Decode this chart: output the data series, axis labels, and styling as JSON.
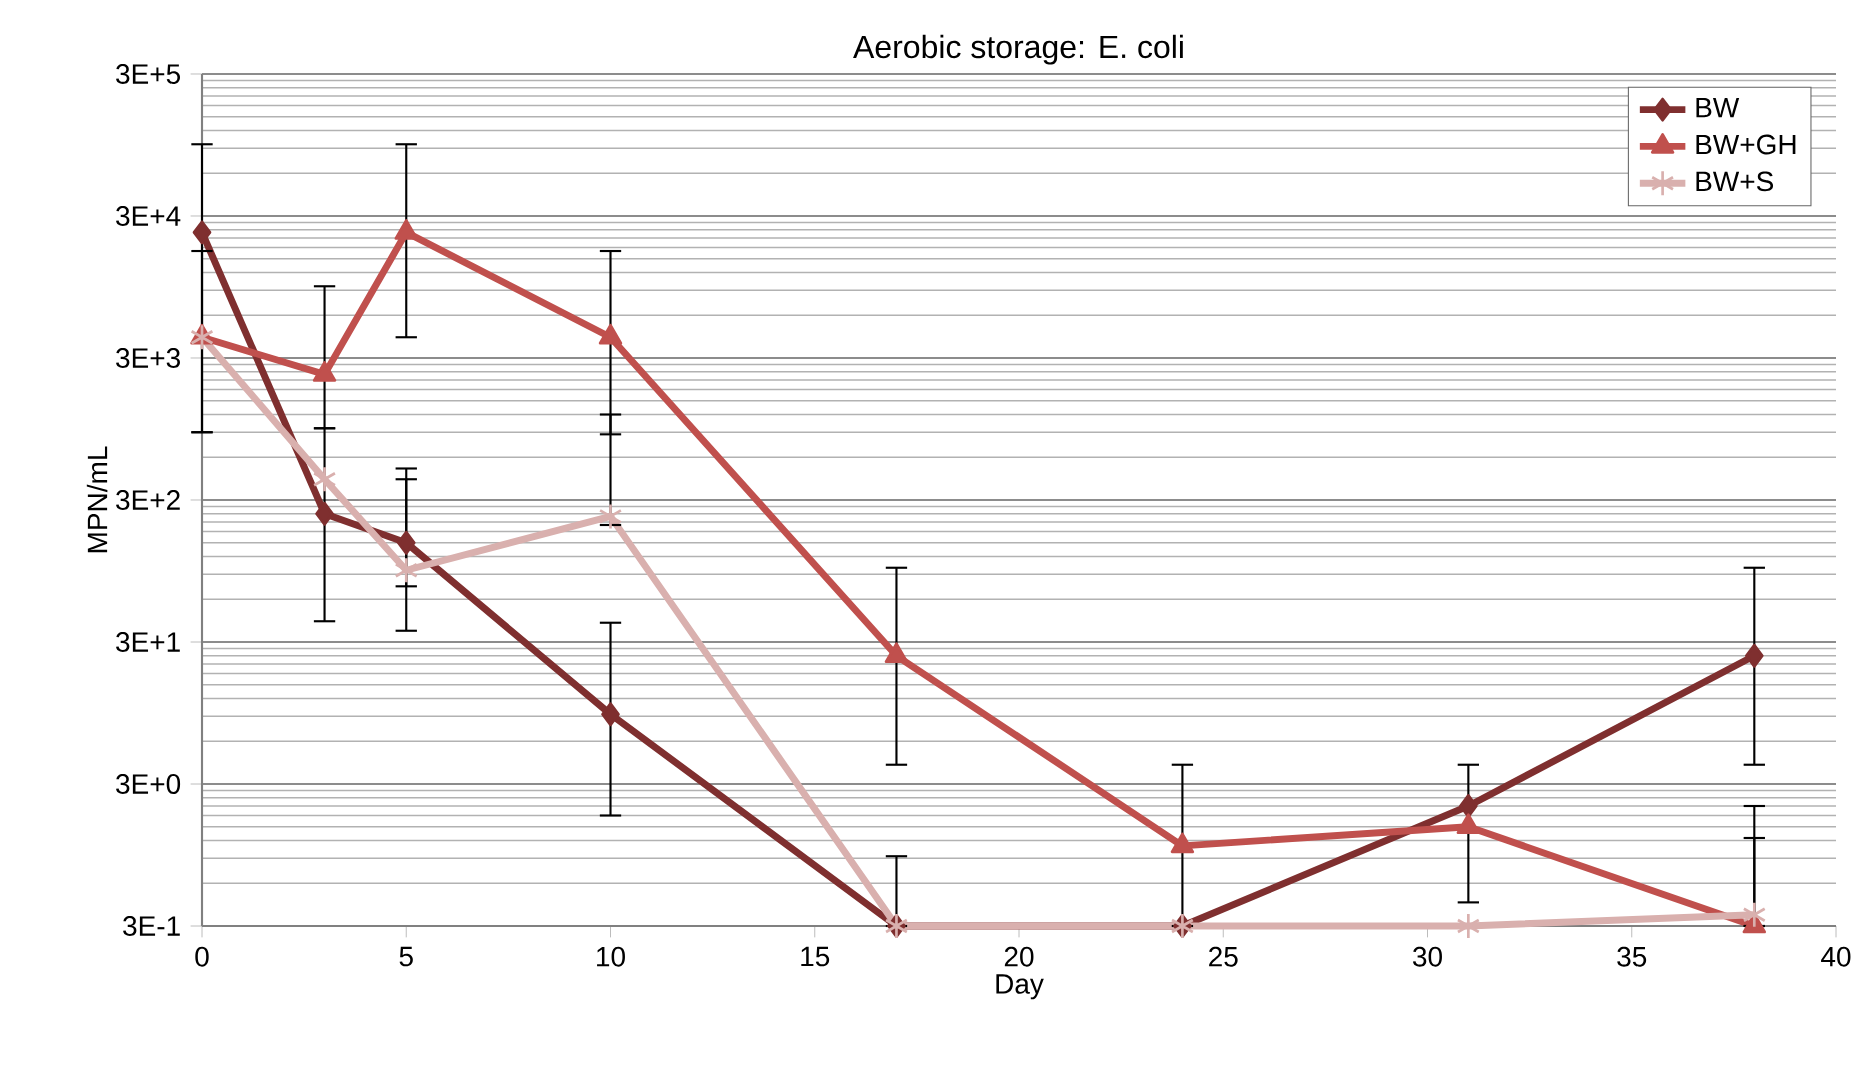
{
  "chart_data": {
    "type": "line",
    "title": "Aerobic storage: E. coli",
    "xlabel": "Day",
    "ylabel": "MPN/mL",
    "log": "y",
    "xlim": [
      0,
      40
    ],
    "xticks": [
      0,
      5,
      10,
      15,
      20,
      25,
      30,
      35,
      40
    ],
    "ylim": [
      0.3,
      300000
    ],
    "yticks": [
      {
        "value": 0.3,
        "label": "3E-1"
      },
      {
        "value": 3,
        "label": "3E+0"
      },
      {
        "value": 30,
        "label": "3E+1"
      },
      {
        "value": 300,
        "label": "3E+2"
      },
      {
        "value": 3000,
        "label": "3E+3"
      },
      {
        "value": 30000,
        "label": "3E+4"
      },
      {
        "value": 300000,
        "label": "3E+5"
      }
    ],
    "grid": "y",
    "legend": "top right",
    "line_style": "solid",
    "x": [
      0,
      3,
      5,
      10,
      17,
      24,
      31,
      38
    ],
    "series": [
      {
        "name": "BW",
        "color": "#7f2f2f",
        "marker": "diamond",
        "values": [
          23000,
          240,
          150,
          9.3,
          0.3,
          0.3,
          2.1,
          24
        ],
        "errors": [
          [
            900,
            96000
          ],
          [
            42,
            960
          ],
          [
            36,
            500
          ],
          [
            1.8,
            41
          ],
          [
            0.3,
            0.93
          ],
          null,
          [
            0.44,
            4.1
          ],
          [
            4.1,
            100
          ]
        ]
      },
      {
        "name": "BW+GH",
        "color": "#c0504d",
        "marker": "triangle",
        "values": [
          4200,
          2300,
          23000,
          4200,
          24,
          1.1,
          1.5,
          0.3
        ],
        "errors": [
          [
            900,
            17000
          ],
          [
            960,
            9600
          ],
          [
            4200,
            96000
          ],
          [
            870,
            17000
          ],
          [
            4.1,
            100
          ],
          [
            0.3,
            4.1
          ],
          null,
          [
            0.3,
            2.1
          ]
        ]
      },
      {
        "name": "BW+S",
        "color": "#d9b0ae",
        "marker": "cross",
        "values": [
          4200,
          420,
          96,
          230,
          0.3,
          0.3,
          0.3,
          0.36
        ],
        "errors": [
          null,
          null,
          [
            74,
            420
          ],
          [
            200,
            1200
          ],
          null,
          null,
          null,
          [
            0.3,
            1.25
          ]
        ]
      }
    ]
  }
}
